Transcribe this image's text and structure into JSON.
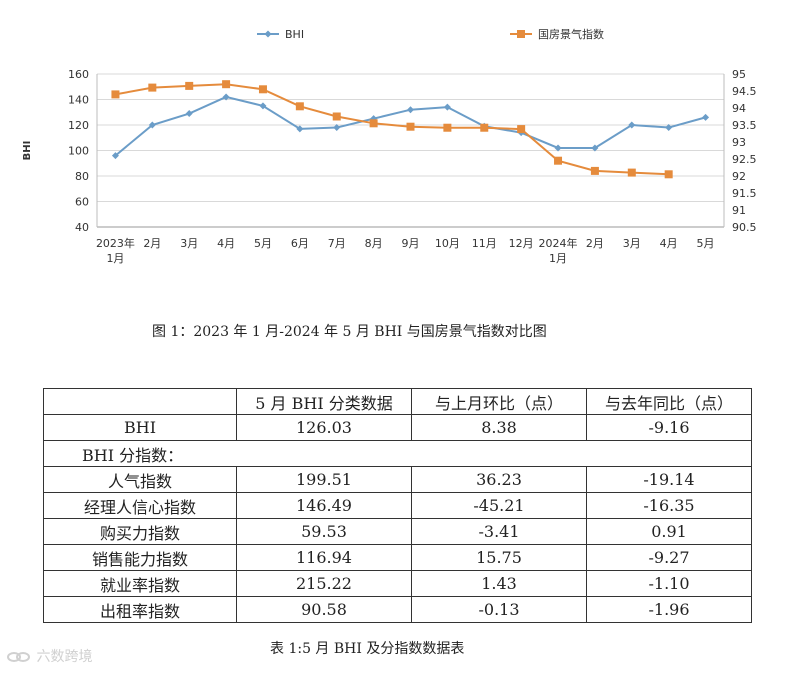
{
  "chart_data": {
    "type": "line",
    "title": "",
    "ylabel": "BHI",
    "ylim": [
      40,
      160
    ],
    "y_ticks": [
      "40",
      "60",
      "80",
      "100",
      "120",
      "140",
      "160"
    ],
    "y2lim": [
      90.5,
      95
    ],
    "y2_ticks": [
      "90.5",
      "91",
      "91.5",
      "92",
      "92.5",
      "93",
      "93.5",
      "94",
      "94.5",
      "95"
    ],
    "categories": [
      {
        "line1": "2023年",
        "line2": "1月"
      },
      {
        "line1": "2月",
        "line2": ""
      },
      {
        "line1": "3月",
        "line2": ""
      },
      {
        "line1": "4月",
        "line2": ""
      },
      {
        "line1": "5月",
        "line2": ""
      },
      {
        "line1": "6月",
        "line2": ""
      },
      {
        "line1": "7月",
        "line2": ""
      },
      {
        "line1": "8月",
        "line2": ""
      },
      {
        "line1": "9月",
        "line2": ""
      },
      {
        "line1": "10月",
        "line2": ""
      },
      {
        "line1": "11月",
        "line2": ""
      },
      {
        "line1": "12月",
        "line2": ""
      },
      {
        "line1": "2024年",
        "line2": "1月"
      },
      {
        "line1": "2月",
        "line2": ""
      },
      {
        "line1": "3月",
        "line2": ""
      },
      {
        "line1": "4月",
        "line2": ""
      },
      {
        "line1": "5月",
        "line2": ""
      }
    ],
    "series": [
      {
        "name": "BHI",
        "axis": "left",
        "color": "#6b9dc8",
        "marker": "diamond",
        "values": [
          96,
          120,
          129,
          142,
          135,
          117,
          118,
          125,
          132,
          134,
          119,
          114,
          102,
          102,
          120,
          118,
          126
        ]
      },
      {
        "name": "国房景气指数",
        "axis": "right",
        "color": "#e58b3c",
        "marker": "square",
        "values": [
          94.4,
          94.6,
          94.65,
          94.7,
          94.55,
          94.05,
          93.75,
          93.55,
          93.45,
          93.42,
          93.42,
          93.38,
          92.45,
          92.15,
          92.1,
          92.05,
          null
        ]
      }
    ]
  },
  "figure_caption": "图 1：2023 年 1 月-2024 年 5 月 BHI 与国房景气指数对比图",
  "table": {
    "headers": [
      "",
      "5 月 BHI 分类数据",
      "与上月环比（点）",
      "与去年同比（点）"
    ],
    "bhi_row": {
      "label": "BHI",
      "value": "126.03",
      "mom": "8.38",
      "yoy": "-9.16"
    },
    "sub_header": "BHI 分指数：",
    "rows": [
      {
        "label": "人气指数",
        "value": "199.51",
        "mom": "36.23",
        "yoy": "-19.14"
      },
      {
        "label": "经理人信心指数",
        "value": "146.49",
        "mom": "-45.21",
        "yoy": "-16.35"
      },
      {
        "label": "购买力指数",
        "value": "59.53",
        "mom": "-3.41",
        "yoy": "0.91"
      },
      {
        "label": "销售能力指数",
        "value": "116.94",
        "mom": "15.75",
        "yoy": "-9.27"
      },
      {
        "label": "就业率指数",
        "value": "215.22",
        "mom": "1.43",
        "yoy": "-1.10"
      },
      {
        "label": "出租率指数",
        "value": "90.58",
        "mom": "-0.13",
        "yoy": "-1.96"
      }
    ]
  },
  "table_caption": "表 1:5 月 BHI 及分指数数据表",
  "watermark": {
    "text": "六数跨境",
    "icon": "chain-link-icon"
  }
}
